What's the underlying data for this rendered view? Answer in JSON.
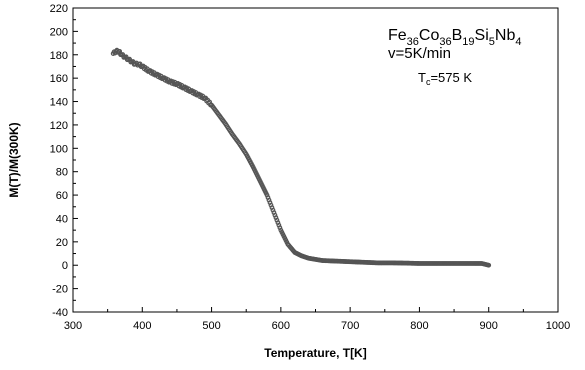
{
  "chart_data": {
    "type": "scatter",
    "title": "",
    "xlabel": "Temperature, T[K]",
    "ylabel": "M(T)/M(300K)",
    "xlim": [
      300,
      1000
    ],
    "ylim": [
      -40,
      220
    ],
    "xticks": [
      300,
      400,
      500,
      600,
      700,
      800,
      900,
      1000
    ],
    "yticks": [
      -40,
      -20,
      0,
      20,
      40,
      60,
      80,
      100,
      120,
      140,
      160,
      180,
      200,
      220
    ],
    "grid": false,
    "legend": "none",
    "marker_color": "#555555",
    "series": [
      {
        "x": [
          358,
          362,
          366,
          370,
          375,
          380,
          385,
          390,
          395,
          400,
          410,
          420,
          430,
          440,
          450,
          460,
          470,
          480,
          490,
          500,
          510,
          520,
          530,
          540,
          550,
          560,
          570,
          580,
          590,
          600,
          610,
          620,
          630,
          640,
          650,
          660,
          680,
          700,
          720,
          740,
          760,
          780,
          800,
          820,
          840,
          860,
          880,
          890,
          900
        ],
        "y": [
          181,
          183,
          183,
          180,
          178,
          176,
          174,
          172,
          172,
          170,
          166,
          163,
          160,
          157,
          155,
          152,
          149,
          146,
          143,
          137,
          129,
          121,
          112,
          104,
          95,
          84,
          72,
          60,
          45,
          30,
          18,
          11,
          8,
          6,
          5,
          4,
          3.5,
          3,
          2.5,
          2,
          2,
          1.8,
          1.5,
          1.5,
          1.5,
          1.5,
          1.5,
          1.5,
          0
        ]
      }
    ],
    "annotations": {
      "composition": [
        {
          "text": "Fe",
          "sub": false
        },
        {
          "text": "36",
          "sub": true
        },
        {
          "text": "Co",
          "sub": false
        },
        {
          "text": "36",
          "sub": true
        },
        {
          "text": "B",
          "sub": false
        },
        {
          "text": "19",
          "sub": true
        },
        {
          "text": "Si",
          "sub": false
        },
        {
          "text": "5",
          "sub": true
        },
        {
          "text": "Nb",
          "sub": false
        },
        {
          "text": "4",
          "sub": true
        }
      ],
      "rate": "v=5K/min",
      "tc_symbol": "T",
      "tc_sub": "c",
      "tc_value": "=575 K"
    }
  }
}
